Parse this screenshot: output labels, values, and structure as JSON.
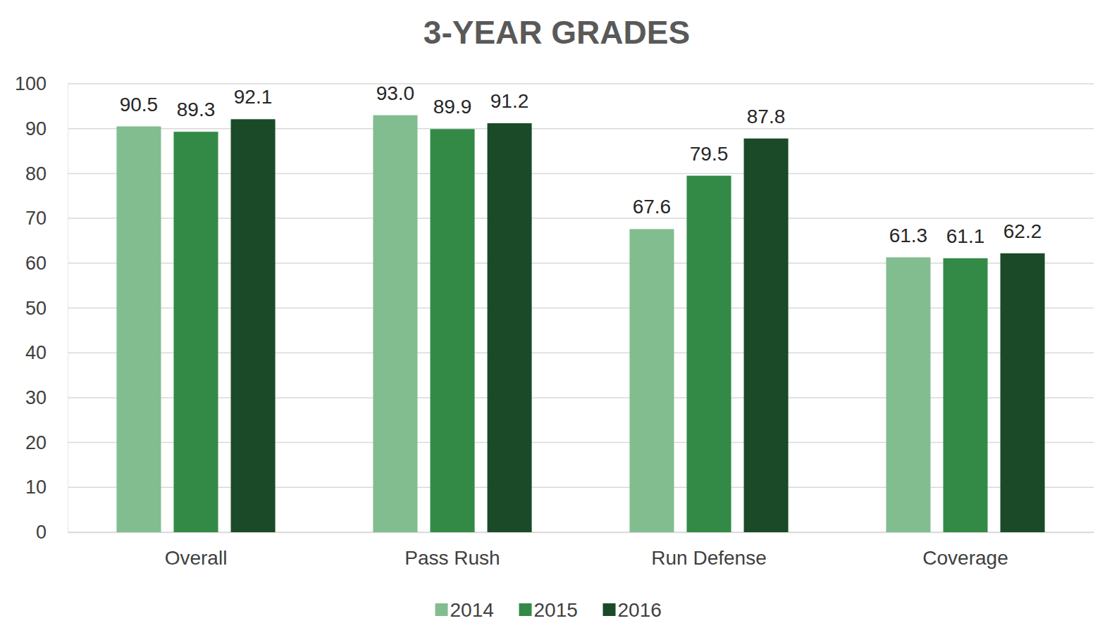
{
  "chart_data": {
    "type": "bar",
    "title": "3-YEAR GRADES",
    "categories": [
      "Overall",
      "Pass Rush",
      "Run Defense",
      "Coverage"
    ],
    "series": [
      {
        "name": "2014",
        "color": "#82bd8f",
        "values": [
          90.5,
          93.0,
          67.6,
          61.3
        ],
        "value_labels": [
          "90.5",
          "93.0",
          "67.6",
          "61.3"
        ]
      },
      {
        "name": "2015",
        "color": "#338a47",
        "values": [
          89.3,
          89.9,
          79.5,
          61.1
        ]
      },
      {
        "name": "2016",
        "color": "#1a4a28",
        "values": [
          92.1,
          91.2,
          87.8,
          62.2
        ]
      }
    ],
    "ylim": [
      0,
      100
    ],
    "yticks": [
      0,
      10,
      20,
      30,
      40,
      50,
      60,
      70,
      80,
      90,
      100
    ],
    "grid": true,
    "data_labels": true,
    "legend": "bottom"
  }
}
